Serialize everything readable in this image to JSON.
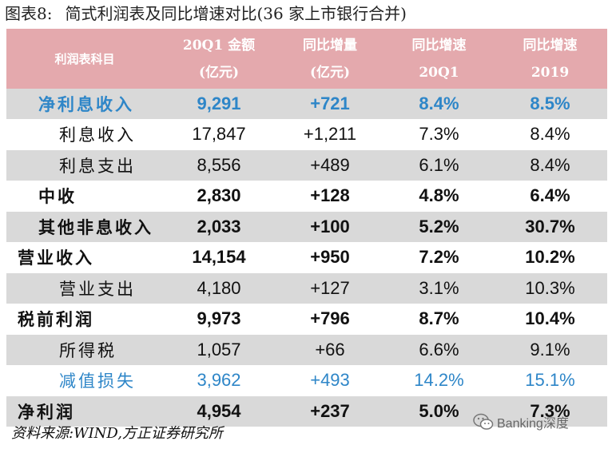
{
  "title": {
    "figure": "图表8:",
    "text": "简式利润表及同比增速对比(36 家上市银行合并)"
  },
  "header": {
    "col0": "利润表科目",
    "col1_line1": "20Q1 金额",
    "col1_line2": "(亿元)",
    "col2_line1": "同比增量",
    "col2_line2": "(亿元)",
    "col3_line1": "同比增速",
    "col3_line2": "20Q1",
    "col4_line1": "同比增速",
    "col4_line2": "2019"
  },
  "rows": [
    {
      "label": "净利息收入",
      "amount": "9,291",
      "delta": "+721",
      "yoy20q1": "8.4%",
      "yoy2019": "8.5%"
    },
    {
      "label": "利息收入",
      "amount": "17,847",
      "delta": "+1,211",
      "yoy20q1": "7.3%",
      "yoy2019": "8.4%"
    },
    {
      "label": "利息支出",
      "amount": "8,556",
      "delta": "+489",
      "yoy20q1": "6.1%",
      "yoy2019": "8.4%"
    },
    {
      "label": "中收",
      "amount": "2,830",
      "delta": "+128",
      "yoy20q1": "4.8%",
      "yoy2019": "6.4%"
    },
    {
      "label": "其他非息收入",
      "amount": "2,033",
      "delta": "+100",
      "yoy20q1": "5.2%",
      "yoy2019": "30.7%"
    },
    {
      "label": "营业收入",
      "amount": "14,154",
      "delta": "+950",
      "yoy20q1": "7.2%",
      "yoy2019": "10.2%"
    },
    {
      "label": "营业支出",
      "amount": "4,180",
      "delta": "+127",
      "yoy20q1": "3.1%",
      "yoy2019": "10.3%"
    },
    {
      "label": "税前利润",
      "amount": "9,973",
      "delta": "+796",
      "yoy20q1": "8.7%",
      "yoy2019": "10.4%"
    },
    {
      "label": "所得税",
      "amount": "1,057",
      "delta": "+66",
      "yoy20q1": "6.6%",
      "yoy2019": "9.1%"
    },
    {
      "label": "减值损失",
      "amount": "3,962",
      "delta": "+493",
      "yoy20q1": "14.2%",
      "yoy2019": "15.1%"
    },
    {
      "label": "净利润",
      "amount": "4,954",
      "delta": "+237",
      "yoy20q1": "5.0%",
      "yoy2019": "7.3%"
    }
  ],
  "footer": {
    "source": "资料来源:WIND,方正证券研究所"
  },
  "watermark": {
    "text": "Banking深度",
    "icon": "wechat-icon"
  },
  "colors": {
    "header_bg": "#e4a9ad",
    "shade_bg": "#d9d9d9",
    "accent_blue": "#2e86c8"
  }
}
